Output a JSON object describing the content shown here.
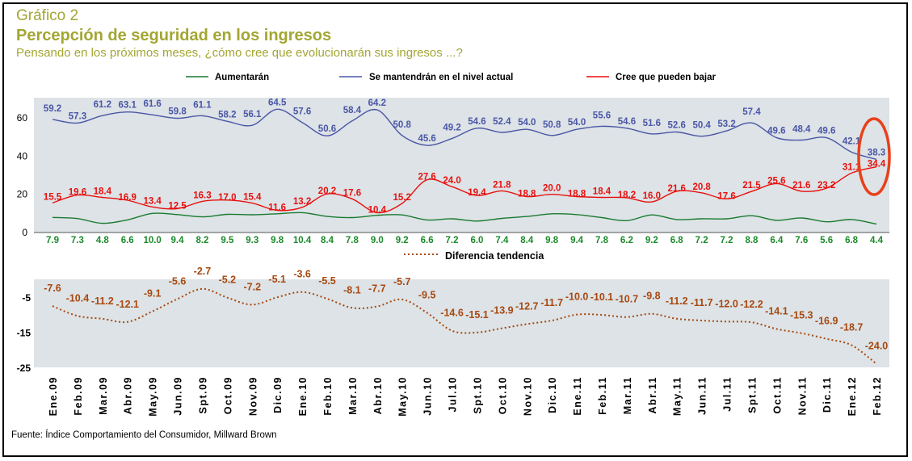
{
  "header": {
    "number": "Gráfico 2",
    "title": "Percepción de seguridad en los ingresos",
    "subtitle": "Pensando en los próximos meses, ¿cómo cree que evolucionarán sus ingresos ...?"
  },
  "source": "Fuente: Índice Comportamiento del Consumidor, Millward Brown",
  "colors": {
    "panel": "#dde3e6",
    "aumentaran": "#1a7a30",
    "mantendran": "#4a56a6",
    "bajar": "#e8100e",
    "diferencia": "#a84810",
    "highlight": "#e8401a",
    "header": "#a3a632"
  },
  "chart_data": [
    {
      "type": "line",
      "x": [
        "Ene.09",
        "Feb.09",
        "Mar.09",
        "Abr.09",
        "May.09",
        "Jun.09",
        "Spt.09",
        "Oct.09",
        "Nov.09",
        "Dic.09",
        "Ene.10",
        "Feb.10",
        "Mar.10",
        "Abr.10",
        "May.10",
        "Jun.10",
        "Jul.10",
        "Spt.10",
        "Oct.10",
        "Nov.10",
        "Dic.10",
        "Ene.11",
        "Feb.11",
        "Mar.11",
        "Abr.11",
        "May.11",
        "Jun.11",
        "Jul.11",
        "Spt.11",
        "Oct.11",
        "Nov.11",
        "Dic.11",
        "Ene.12",
        "Feb.12"
      ],
      "series": [
        {
          "name": "Aumentarán",
          "values": [
            7.9,
            7.3,
            4.8,
            6.6,
            10.0,
            9.4,
            8.2,
            9.5,
            9.3,
            9.8,
            10.4,
            8.4,
            7.8,
            9.0,
            9.2,
            6.6,
            7.2,
            6.0,
            7.4,
            8.4,
            9.8,
            9.4,
            7.8,
            6.2,
            9.2,
            6.8,
            7.2,
            7.2,
            8.8,
            6.4,
            7.6,
            5.6,
            6.8,
            4.4
          ]
        },
        {
          "name": "Se mantendrán en el nivel actual",
          "values": [
            59.2,
            57.3,
            61.2,
            63.1,
            61.6,
            59.8,
            61.1,
            58.2,
            56.1,
            64.5,
            57.6,
            50.6,
            58.4,
            64.2,
            50.8,
            45.6,
            49.2,
            54.6,
            52.4,
            54.0,
            50.8,
            54.0,
            55.6,
            54.6,
            51.6,
            52.6,
            50.4,
            53.2,
            57.4,
            49.6,
            48.4,
            49.6,
            42.1,
            38.3
          ]
        },
        {
          "name": "Cree que pueden bajar",
          "values": [
            15.5,
            19.6,
            18.4,
            16.9,
            13.4,
            12.5,
            16.3,
            17.0,
            15.4,
            11.6,
            13.2,
            20.2,
            17.6,
            10.4,
            15.2,
            27.6,
            24.0,
            19.4,
            21.8,
            18.8,
            20.0,
            18.8,
            18.4,
            18.2,
            16.0,
            21.6,
            20.8,
            17.6,
            21.5,
            25.6,
            21.6,
            23.2,
            31.1,
            34.4
          ]
        }
      ],
      "ylim": [
        0,
        70
      ],
      "yticks": [
        0,
        20,
        40,
        60
      ],
      "legend": "top",
      "grid": false
    },
    {
      "type": "line",
      "x": [
        "Ene.09",
        "Feb.09",
        "Mar.09",
        "Abr.09",
        "May.09",
        "Jun.09",
        "Spt.09",
        "Oct.09",
        "Nov.09",
        "Dic.09",
        "Ene.10",
        "Feb.10",
        "Mar.10",
        "Abr.10",
        "May.10",
        "Jun.10",
        "Jul.10",
        "Spt.10",
        "Oct.10",
        "Nov.10",
        "Dic.10",
        "Ene.11",
        "Feb.11",
        "Mar.11",
        "Abr.11",
        "May.11",
        "Jun.11",
        "Jul.11",
        "Spt.11",
        "Oct.11",
        "Nov.11",
        "Dic.11",
        "Ene.12",
        "Feb.12"
      ],
      "series": [
        {
          "name": "Diferencia tendencia",
          "values": [
            -7.6,
            -10.4,
            -11.2,
            -12.1,
            -9.1,
            -5.6,
            -2.7,
            -5.2,
            -7.2,
            -5.1,
            -3.6,
            -5.5,
            -8.1,
            -7.7,
            -5.7,
            -9.5,
            -14.6,
            -15.1,
            -13.9,
            -12.7,
            -11.7,
            -10.0,
            -10.1,
            -10.7,
            -9.8,
            -11.2,
            -11.7,
            -12.0,
            -12.2,
            -14.1,
            -15.3,
            -16.9,
            -18.7,
            -24.0
          ]
        }
      ],
      "ylim": [
        -25,
        0
      ],
      "yticks": [
        -5,
        -15,
        -25
      ],
      "legend": "top",
      "grid": false
    }
  ]
}
